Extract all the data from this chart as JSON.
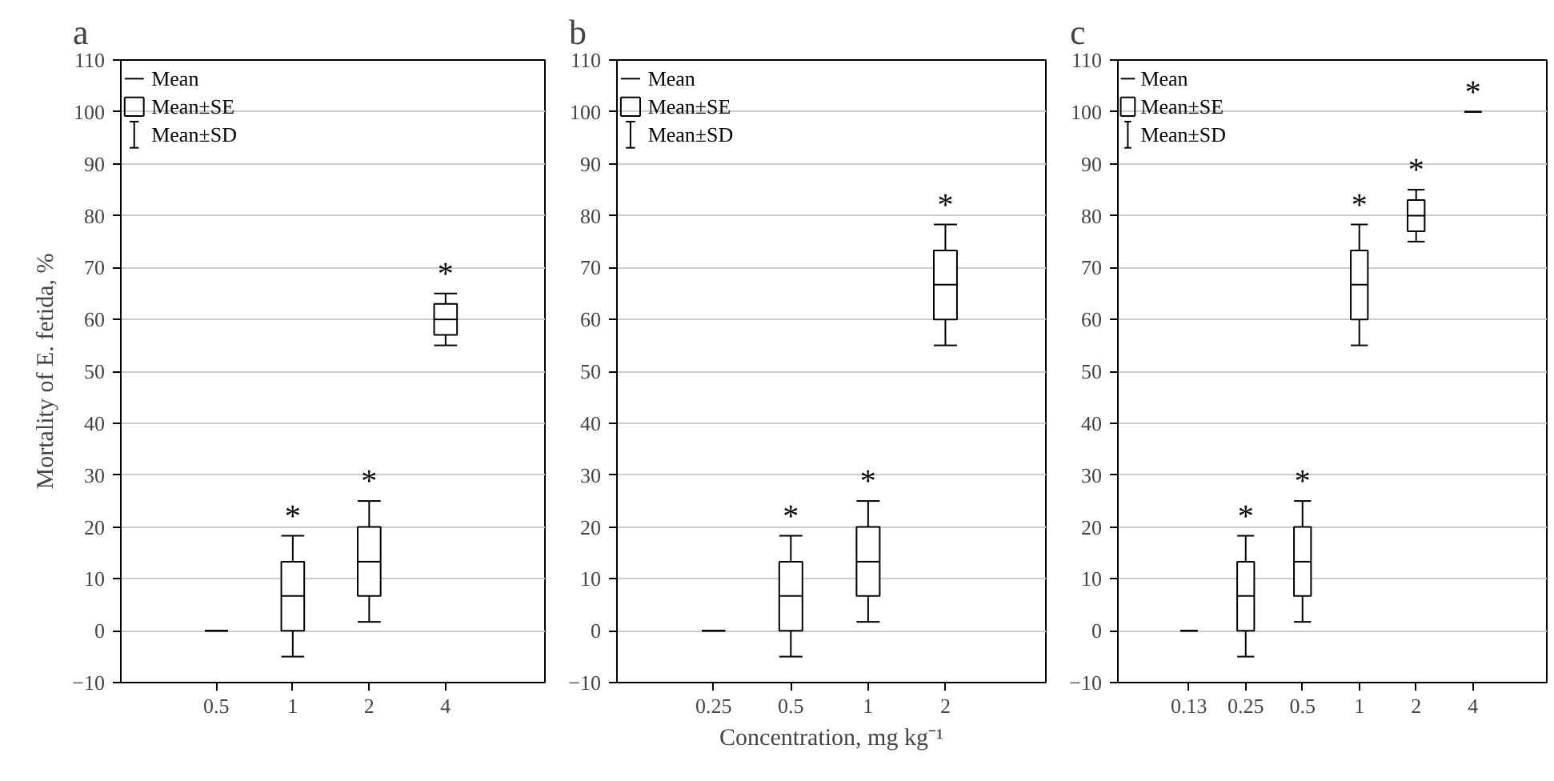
{
  "chart_data": [
    {
      "type": "box",
      "title": "a",
      "ylabel": "Mortality of E. fetida, %",
      "categories": [
        "0.5",
        "1",
        "2",
        "4"
      ],
      "color": "#000000",
      "ylim": [
        -10,
        110
      ],
      "yticks": [
        -10,
        0,
        10,
        20,
        30,
        40,
        50,
        60,
        70,
        80,
        90,
        100,
        110
      ],
      "grid": "y",
      "boxes": [
        {
          "low": 0,
          "q1": 0,
          "median": 0,
          "q3": 0,
          "high": 0
        },
        {
          "low": -5,
          "q1": 0,
          "median": 6.7,
          "q3": 13.3,
          "high": 18.3
        },
        {
          "low": 1.7,
          "q1": 6.7,
          "median": 13.3,
          "q3": 20,
          "high": 25
        },
        {
          "low": 55,
          "q1": 57,
          "median": 60,
          "q3": 63,
          "high": 65
        }
      ],
      "annotations": [
        "Mean",
        "Mean±SE",
        "Mean±SD",
        {
          "text": "*",
          "x": "1",
          "y": 18.3
        },
        {
          "text": "*",
          "x": "2",
          "y": 25
        },
        {
          "text": "*",
          "x": "4",
          "y": 65
        }
      ]
    },
    {
      "type": "box",
      "title": "b",
      "xlabel": "Concentration, mg kg⁻¹",
      "categories": [
        "0.25",
        "0.5",
        "1",
        "2"
      ],
      "color": "#000000",
      "ylim": [
        -10,
        110
      ],
      "yticks": [
        -10,
        0,
        10,
        20,
        30,
        40,
        50,
        60,
        70,
        80,
        90,
        100,
        110
      ],
      "grid": "y",
      "boxes": [
        {
          "low": 0,
          "q1": 0,
          "median": 0,
          "q3": 0,
          "high": 0
        },
        {
          "low": -5,
          "q1": 0,
          "median": 6.7,
          "q3": 13.3,
          "high": 18.3
        },
        {
          "low": 1.7,
          "q1": 6.7,
          "median": 13.3,
          "q3": 20,
          "high": 25
        },
        {
          "low": 55,
          "q1": 60,
          "median": 66.7,
          "q3": 73.3,
          "high": 78.3
        }
      ],
      "annotations": [
        "Mean",
        "Mean±SE",
        "Mean±SD",
        {
          "text": "*",
          "x": "0.5",
          "y": 18.3
        },
        {
          "text": "*",
          "x": "1",
          "y": 25
        },
        {
          "text": "*",
          "x": "2",
          "y": 78.3
        }
      ]
    },
    {
      "type": "box",
      "title": "c",
      "categories": [
        "0.13",
        "0.25",
        "0.5",
        "1",
        "2",
        "4"
      ],
      "color": "#000000",
      "ylim": [
        -10,
        110
      ],
      "yticks": [
        -10,
        0,
        10,
        20,
        30,
        40,
        50,
        60,
        70,
        80,
        90,
        100,
        110
      ],
      "grid": "y",
      "boxes": [
        {
          "low": 0,
          "q1": 0,
          "median": 0,
          "q3": 0,
          "high": 0
        },
        {
          "low": -5,
          "q1": 0,
          "median": 6.7,
          "q3": 13.3,
          "high": 18.3
        },
        {
          "low": 1.7,
          "q1": 6.7,
          "median": 13.3,
          "q3": 20,
          "high": 25
        },
        {
          "low": 55,
          "q1": 60,
          "median": 66.7,
          "q3": 73.3,
          "high": 78.3
        },
        {
          "low": 75,
          "q1": 77,
          "median": 80,
          "q3": 83,
          "high": 85
        },
        {
          "low": 100,
          "q1": 100,
          "median": 100,
          "q3": 100,
          "high": 100
        }
      ],
      "annotations": [
        "Mean",
        "Mean±SE",
        "Mean±SD",
        {
          "text": "*",
          "x": "0.25",
          "y": 18.3
        },
        {
          "text": "*",
          "x": "0.5",
          "y": 25
        },
        {
          "text": "*",
          "x": "1",
          "y": 78.3
        },
        {
          "text": "*",
          "x": "2",
          "y": 85
        },
        {
          "text": "*",
          "x": "4",
          "y": 100
        }
      ]
    }
  ]
}
